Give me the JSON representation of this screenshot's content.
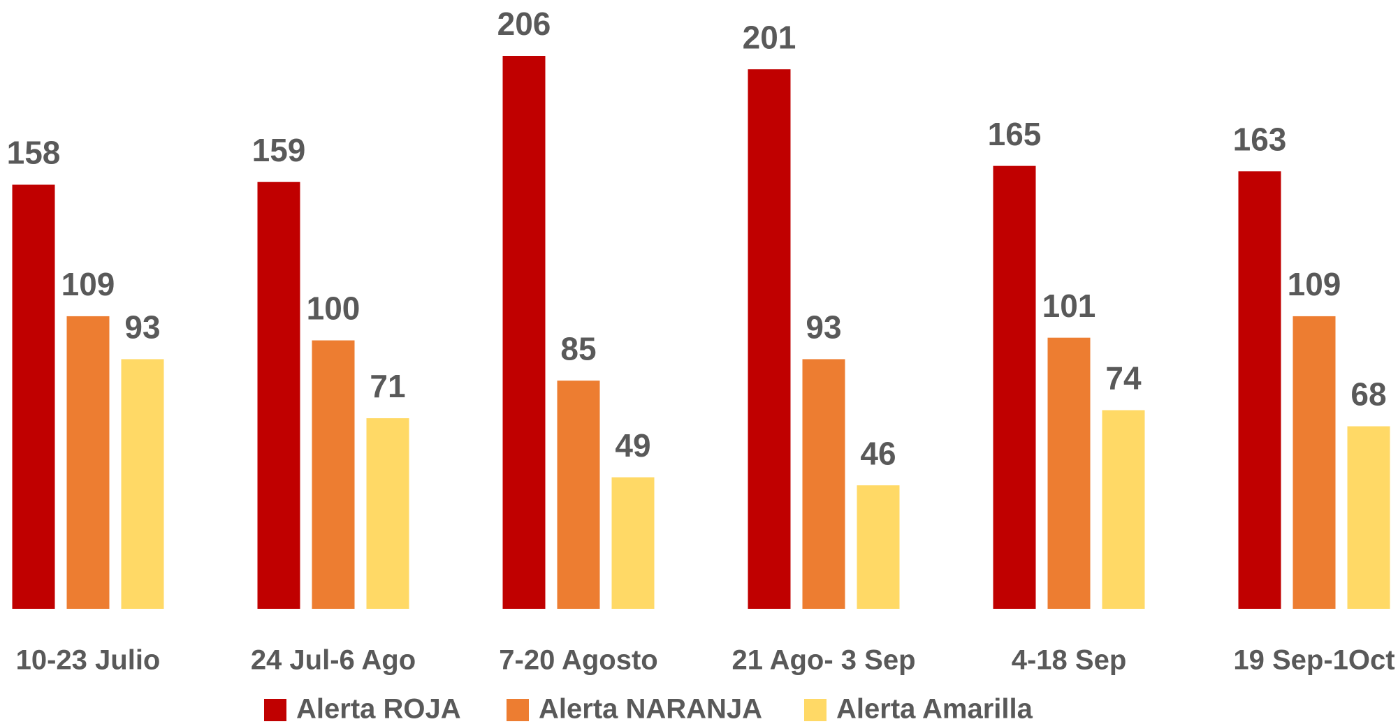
{
  "chart_data": {
    "type": "bar",
    "categories": [
      "10-23 Julio",
      "24 Jul-6 Ago",
      "7-20 Agosto",
      "21 Ago- 3 Sep",
      "4-18 Sep",
      "19 Sep-1Oct"
    ],
    "series": [
      {
        "name": "Alerta ROJA",
        "color": "#c00000",
        "values": [
          158,
          159,
          206,
          201,
          165,
          163
        ]
      },
      {
        "name": "Alerta NARANJA",
        "color": "#ed7d31",
        "values": [
          109,
          100,
          85,
          93,
          101,
          109
        ]
      },
      {
        "name": "Alerta Amarilla",
        "color": "#ffd966",
        "values": [
          93,
          71,
          49,
          46,
          74,
          68
        ]
      }
    ]
  }
}
